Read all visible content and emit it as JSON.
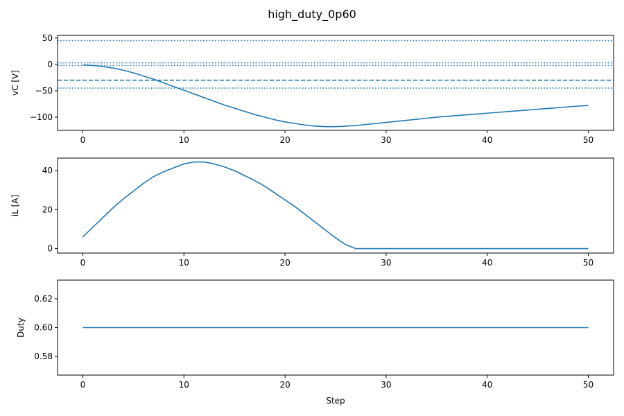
{
  "title": "high_duty_0p60",
  "colors": {
    "series": "#1f77b4",
    "axes": "#000000",
    "background": "#ffffff"
  },
  "chart_data": [
    {
      "type": "line",
      "ylabel": "vC [V]",
      "xlabel": "",
      "xlim": [
        -2.5,
        52.5
      ],
      "ylim": [
        -125,
        55
      ],
      "xticks": [
        0,
        10,
        20,
        30,
        40,
        50
      ],
      "yticks": [
        -100,
        -50,
        0,
        50
      ],
      "grid": false,
      "series": [
        {
          "x": [
            0,
            1,
            2,
            3,
            4,
            5,
            6,
            7,
            8,
            9,
            10,
            11,
            12,
            13,
            14,
            15,
            16,
            17,
            18,
            19,
            20,
            21,
            22,
            23,
            24,
            25,
            26,
            27,
            28,
            29,
            30,
            31,
            32,
            33,
            34,
            35,
            36,
            37,
            38,
            39,
            40,
            41,
            42,
            43,
            44,
            45,
            46,
            47,
            48,
            49,
            50
          ],
          "y": [
            -1,
            -2,
            -4,
            -7,
            -11,
            -16,
            -22,
            -28,
            -35,
            -42,
            -49,
            -56,
            -63,
            -70,
            -77,
            -83,
            -89,
            -95,
            -100,
            -105,
            -109,
            -112,
            -115,
            -117,
            -118,
            -118,
            -117,
            -116,
            -114,
            -112,
            -110,
            -108,
            -106,
            -104,
            -102,
            -100,
            -98.5,
            -97,
            -95.5,
            -94,
            -92.5,
            -91,
            -89.5,
            -88,
            -86.5,
            -85,
            -83.5,
            -82,
            -80.5,
            -79,
            -78
          ]
        }
      ],
      "reference_lines": [
        {
          "y": 45,
          "style": "dotted"
        },
        {
          "y": 3,
          "style": "dotted"
        },
        {
          "y": -2,
          "style": "dotted"
        },
        {
          "y": -30,
          "style": "dashed"
        },
        {
          "y": -45,
          "style": "dotted"
        }
      ]
    },
    {
      "type": "line",
      "ylabel": "iL [A]",
      "xlabel": "",
      "xlim": [
        -2.5,
        52.5
      ],
      "ylim": [
        -2.3,
        46.5
      ],
      "xticks": [
        0,
        10,
        20,
        30,
        40,
        50
      ],
      "yticks": [
        0,
        20,
        40
      ],
      "grid": false,
      "series": [
        {
          "x": [
            0,
            1,
            2,
            3,
            4,
            5,
            6,
            7,
            8,
            9,
            10,
            11,
            12,
            13,
            14,
            15,
            16,
            17,
            18,
            19,
            20,
            21,
            22,
            23,
            24,
            25,
            26,
            27,
            28,
            29,
            30,
            31,
            32,
            33,
            34,
            35,
            36,
            37,
            38,
            39,
            40,
            41,
            42,
            43,
            44,
            45,
            46,
            47,
            48,
            49,
            50
          ],
          "y": [
            6,
            11,
            16,
            21,
            25.5,
            29.5,
            33.5,
            37,
            39.5,
            41.5,
            43.5,
            44.5,
            44.5,
            43.5,
            42,
            40,
            37.5,
            35,
            32,
            28.5,
            25,
            21.5,
            17.5,
            13.5,
            9.5,
            5.5,
            2,
            0,
            0,
            0,
            0,
            0,
            0,
            0,
            0,
            0,
            0,
            0,
            0,
            0,
            0,
            0,
            0,
            0,
            0,
            0,
            0,
            0,
            0,
            0,
            0
          ]
        }
      ]
    },
    {
      "type": "line",
      "ylabel": "Duty",
      "xlabel": "Step",
      "xlim": [
        -2.5,
        52.5
      ],
      "ylim": [
        0.567,
        0.633
      ],
      "xticks": [
        0,
        10,
        20,
        30,
        40,
        50
      ],
      "yticks": [
        0.58,
        0.6,
        0.62
      ],
      "ytick_labels": [
        "0.58",
        "0.60",
        "0.62"
      ],
      "grid": false,
      "series": [
        {
          "x": [
            0,
            50
          ],
          "y": [
            0.6,
            0.6
          ]
        }
      ]
    }
  ]
}
